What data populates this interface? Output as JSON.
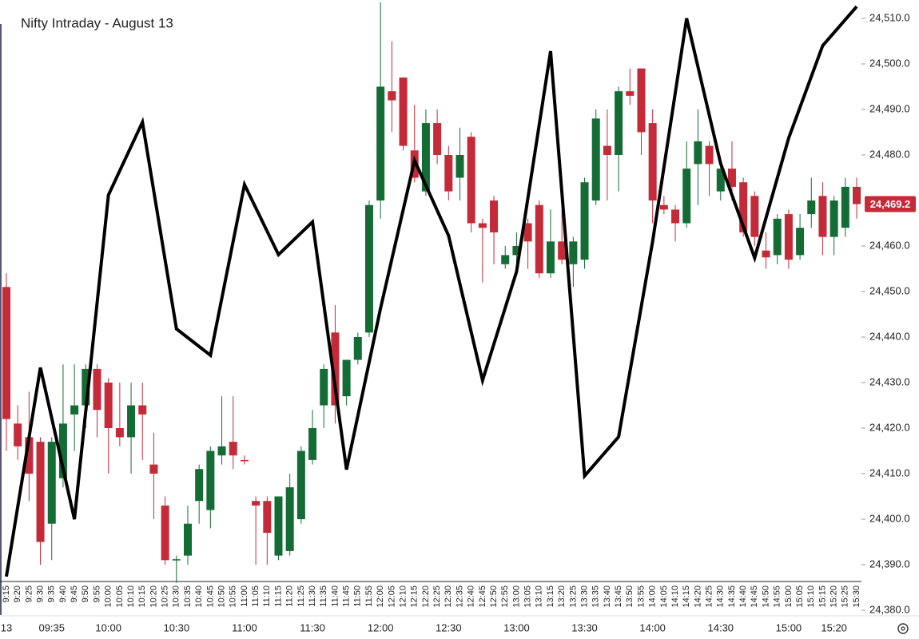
{
  "chart_data": {
    "type": "candlestick",
    "title": "Nifty Intraday - August 13",
    "categories": [
      "9:15",
      "9:20",
      "9:25",
      "9:30",
      "9:35",
      "9:40",
      "9:45",
      "9:50",
      "9:55",
      "10:00",
      "10:05",
      "10:10",
      "10:15",
      "10:20",
      "10:25",
      "10:30",
      "10:35",
      "10:40",
      "10:45",
      "10:50",
      "10:55",
      "11:00",
      "11:05",
      "11:10",
      "11:15",
      "11:20",
      "11:25",
      "11:30",
      "11:35",
      "11:40",
      "11:45",
      "11:50",
      "11:55",
      "12:00",
      "12:05",
      "12:10",
      "12:15",
      "12:20",
      "12:25",
      "12:30",
      "12:35",
      "12:40",
      "12:45",
      "12:50",
      "12:55",
      "13:00",
      "13:05",
      "13:10",
      "13:15",
      "13:20",
      "13:25",
      "13:30",
      "13:35",
      "13:40",
      "13:45",
      "13:50",
      "13:55",
      "14:00",
      "14:05",
      "14:10",
      "14:15",
      "14:20",
      "14:25",
      "14:30",
      "14:35",
      "14:40",
      "14:45",
      "14:50",
      "14:55",
      "15:00",
      "15:05",
      "15:10",
      "15:15",
      "15:20",
      "15:25",
      "15:30"
    ],
    "open": [
      24451,
      24421,
      24418,
      24417,
      24399,
      24409,
      24423,
      24425,
      24433,
      24430,
      24420,
      24418,
      24425,
      24412,
      24403,
      24391,
      24392,
      24404,
      24402,
      24414,
      24417,
      24413,
      24404,
      24404,
      24392,
      24393,
      24400,
      24413,
      24425,
      24441,
      24427,
      24435,
      24441,
      24470,
      24494,
      24497,
      24481,
      24472,
      24487,
      24480,
      24475,
      24484,
      24465,
      24470,
      24456,
      24458,
      24465,
      24469,
      24454,
      24461,
      24456,
      24457,
      24470,
      24482,
      24480,
      24494,
      24499,
      24487,
      24469,
      24468,
      24465,
      24478,
      24482,
      24472,
      24477,
      24474,
      24471,
      24459,
      24458,
      24467,
      24458,
      24467,
      24471,
      24462,
      24464,
      24473
    ],
    "high": [
      24454,
      24425,
      24428,
      24418,
      24418,
      24434,
      24434,
      24434,
      24434,
      24431,
      24430,
      24430,
      24430,
      24419,
      24405,
      24392,
      24403,
      24412,
      24416,
      24427,
      24427,
      24414,
      24405,
      24405,
      24405,
      24410,
      24416,
      24424,
      24434,
      24447,
      24435,
      24441,
      24470,
      24513.5,
      24505,
      24497,
      24491,
      24490,
      24490,
      24482,
      24486,
      24485,
      24466,
      24471,
      24460,
      24463,
      24466,
      24470,
      24468,
      24468,
      24462,
      24475,
      24490,
      24490,
      24495,
      24499,
      24499,
      24490,
      24471,
      24469,
      24483,
      24490,
      24483,
      24479,
      24483,
      24475,
      24472,
      24463,
      24467,
      24468,
      24467,
      24475,
      24474,
      24471,
      24475,
      24475
    ],
    "low": [
      24415,
      24413,
      24404,
      24390,
      24391,
      24407,
      24415,
      24420,
      24418,
      24410,
      24416,
      24410,
      24413,
      24400,
      24390,
      24386,
      24390,
      24399,
      24398,
      24412,
      24411,
      24412,
      24390,
      24390,
      24391,
      24392,
      24399,
      24412,
      24420,
      24421,
      24425,
      24434,
      24440,
      24466,
      24485,
      24481,
      24474,
      24471,
      24478,
      24470,
      24470,
      24463,
      24452,
      24456,
      24455,
      24454,
      24455,
      24453,
      24453,
      24456,
      24451,
      24455,
      24469,
      24470,
      24472,
      24491,
      24480,
      24465,
      24467,
      24461,
      24464,
      24469,
      24471,
      24470,
      24470,
      24462,
      24460,
      24455,
      24456,
      24455,
      24457,
      24464,
      24458,
      24458,
      24462,
      24466
    ],
    "close": [
      24422,
      24416,
      24410,
      24395,
      24417,
      24421,
      24425,
      24433,
      24424,
      24420,
      24418,
      24425,
      24423,
      24410,
      24391,
      24391.2,
      24399,
      24411,
      24415,
      24416,
      24414,
      24412.8,
      24403,
      24397,
      24405,
      24407,
      24415,
      24420,
      24433,
      24425,
      24435,
      24440,
      24469,
      24495,
      24492,
      24482,
      24475,
      24487,
      24480,
      24472,
      24480,
      24465,
      24464,
      24463,
      24458,
      24460,
      24461,
      24454,
      24461,
      24457,
      24461,
      24474,
      24488,
      24480,
      24494,
      24493,
      24485,
      24470,
      24468,
      24465,
      24477,
      24483,
      24478,
      24477,
      24473,
      24463,
      24462,
      24457.5,
      24466,
      24457,
      24464,
      24470,
      24462,
      24470,
      24473,
      24469.2
    ],
    "up_color": "#146c35",
    "down_color": "#c52a38",
    "line": {
      "color": "#000000",
      "x": [
        "9:15",
        "9:30",
        "9:45",
        "10:00",
        "10:15",
        "10:30",
        "10:45",
        "11:00",
        "11:15",
        "11:30",
        "11:45",
        "12:00",
        "12:15",
        "12:30",
        "12:45",
        "13:00",
        "13:15",
        "13:30",
        "13:45",
        "14:00",
        "14:15",
        "14:30",
        "14:45",
        "15:00",
        "15:15",
        "15:30"
      ],
      "values": [
        24387.4,
        24433.3,
        24400,
        24471.2,
        24487.2,
        24441.8,
        24436,
        24473.5,
        24458.1,
        24465.3,
        24410.9,
        24446.3,
        24478.8,
        24462.3,
        24430.5,
        24454.4,
        24502.8,
        24409.5,
        24418.1,
        24461,
        24510,
        24478.1,
        24457.4,
        24483.7,
        24504,
        24512.6
      ]
    },
    "ylim": [
      24380,
      24510
    ],
    "yticks": [
      {
        "value": 24380,
        "label": "24,380.0"
      },
      {
        "value": 24390,
        "label": "24,390.0"
      },
      {
        "value": 24400,
        "label": "24,400.0"
      },
      {
        "value": 24410,
        "label": "24,410.0"
      },
      {
        "value": 24420,
        "label": "24,420.0"
      },
      {
        "value": 24430,
        "label": "24,430.0"
      },
      {
        "value": 24440,
        "label": "24,440.0"
      },
      {
        "value": 24450,
        "label": "24,450.0"
      },
      {
        "value": 24460,
        "label": "24,460.0"
      },
      {
        "value": 24480,
        "label": "24,480.0"
      },
      {
        "value": 24490,
        "label": "24,490.0"
      },
      {
        "value": 24500,
        "label": "24,500.0"
      },
      {
        "value": 24510,
        "label": "24,510.0"
      }
    ],
    "last_price": {
      "value": 24469.2,
      "label": "24,469.2"
    },
    "time_labels": [
      {
        "at": "9:15",
        "label": "13"
      },
      {
        "at": "9:35",
        "label": "09:35"
      },
      {
        "at": "10:00",
        "label": "10:00"
      },
      {
        "at": "10:30",
        "label": "10:30"
      },
      {
        "at": "11:00",
        "label": "11:00"
      },
      {
        "at": "11:30",
        "label": "11:30"
      },
      {
        "at": "12:00",
        "label": "12:00"
      },
      {
        "at": "12:30",
        "label": "12:30"
      },
      {
        "at": "13:00",
        "label": "13:00"
      },
      {
        "at": "13:30",
        "label": "13:30"
      },
      {
        "at": "14:00",
        "label": "14:00"
      },
      {
        "at": "14:30",
        "label": "14:30"
      },
      {
        "at": "15:00",
        "label": "15:00"
      },
      {
        "at": "15:20",
        "label": "15:20"
      }
    ]
  }
}
